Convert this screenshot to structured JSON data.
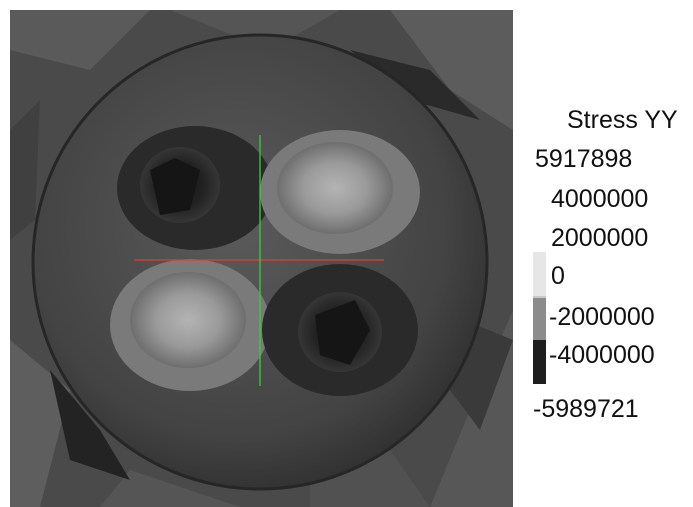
{
  "legend": {
    "title": "Stress YY",
    "max_label": "5917898",
    "ticks": [
      "4000000",
      "2000000",
      "0",
      "-2000000",
      "-4000000"
    ],
    "min_label": "-5989721"
  },
  "colorbar": {
    "colors": [
      "#e6e6e6",
      "#c8c8c8",
      "#8c8c8c",
      "#1e1e1e"
    ]
  },
  "axes": {
    "horizontal_color": "#e03c3c",
    "vertical_color": "#3ccc3c"
  },
  "render_colors": {
    "background": "#4a4a4a",
    "sphere_base": "#3a3a3a",
    "high_stress": "#a8a8a8",
    "low_stress": "#1c1c1c"
  }
}
